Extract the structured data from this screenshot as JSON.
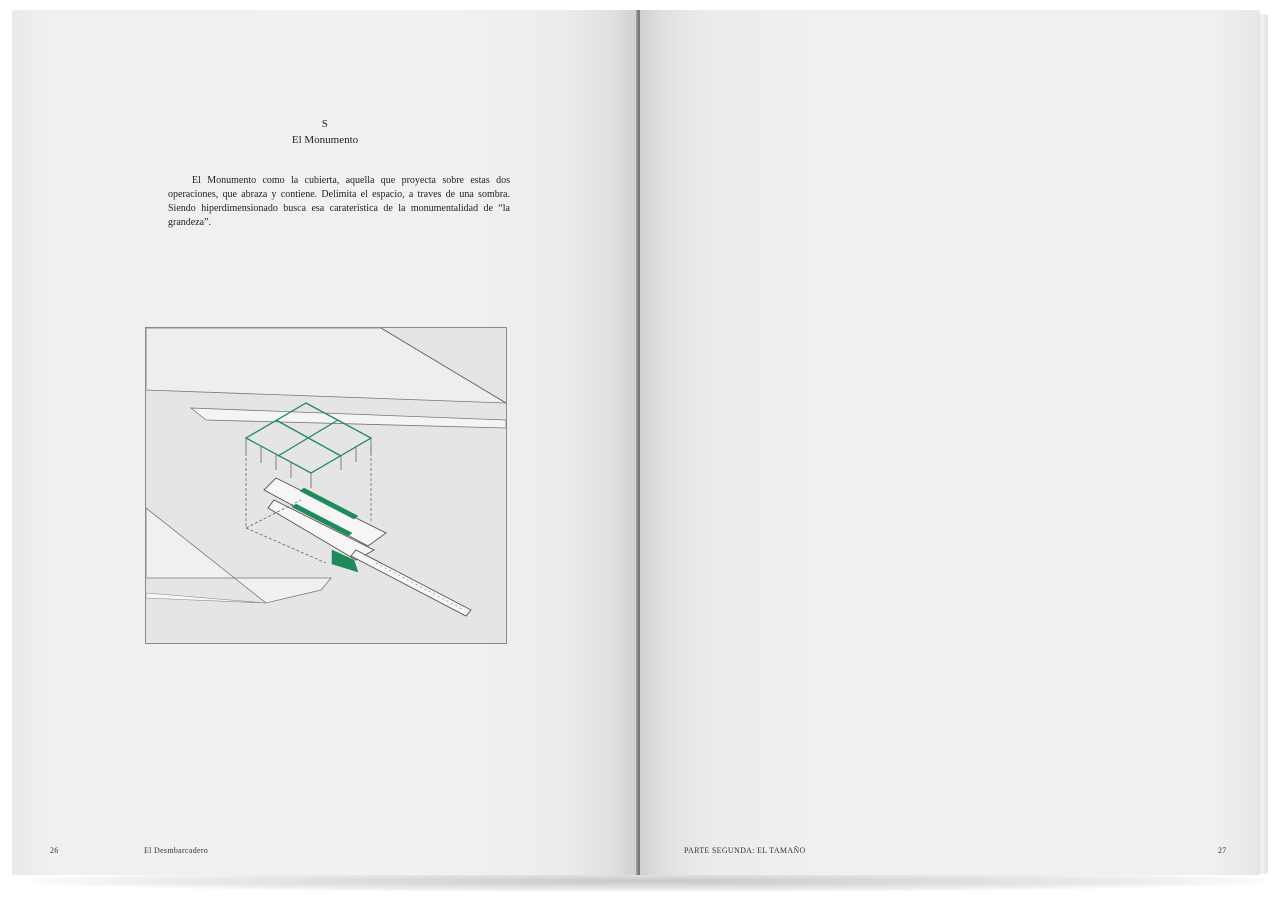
{
  "left_page": {
    "section_letter": "S",
    "section_title": "El Monumento",
    "body": "El Monumento como la cubierta, aquella que proyecta sobre estas dos operaciones, que abraza y contiene. Delimita el espacio, a traves de una sombra. Siendo hiperdimensionado busca esa carateristica de la monumentalidad de “la grandeza”.",
    "folio_number": "26",
    "folio_title": "El Desmbarcadero"
  },
  "right_page": {
    "folio_title": "PARTE SEGUNDA: EL TAMAÑO",
    "folio_number": "27"
  },
  "colors": {
    "page": "#efefef",
    "text": "#222222",
    "accent_green": "#1f8a5b",
    "figure_line": "#555555"
  }
}
